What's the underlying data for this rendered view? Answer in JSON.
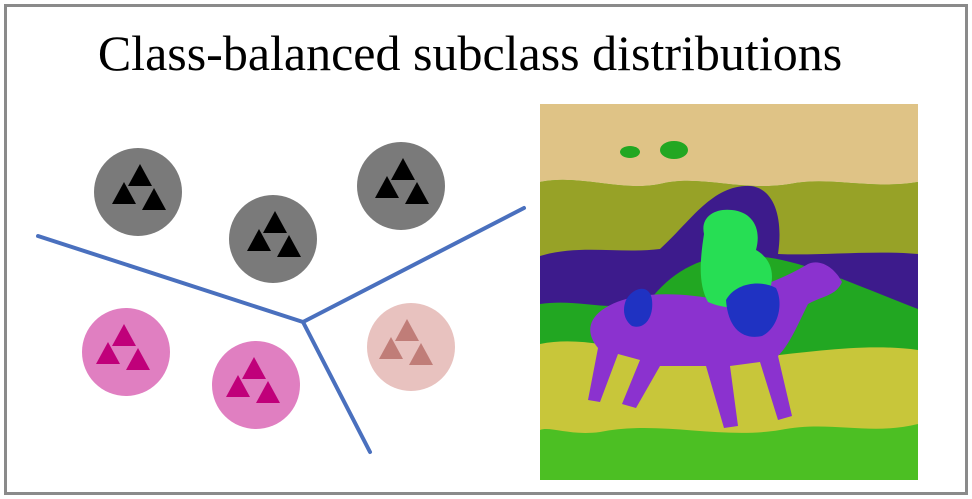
{
  "title": "Class-balanced subclass distributions",
  "colors": {
    "frame": "#8a8a8a",
    "boundary": "#4a70be",
    "cluster_gray_fill": "#7a7a7a",
    "cluster_gray_marker": "#000000",
    "cluster_pink_fill": "#e07fc1",
    "cluster_pink_marker": "#c0007a",
    "cluster_faded_fill": "#e8c2bf",
    "cluster_faded_marker": "#c07d78"
  },
  "clusters": [
    {
      "name": "cluster-gray-1",
      "group": "gray"
    },
    {
      "name": "cluster-gray-2",
      "group": "gray"
    },
    {
      "name": "cluster-gray-3",
      "group": "gray"
    },
    {
      "name": "cluster-pink-1",
      "group": "pink"
    },
    {
      "name": "cluster-pink-2",
      "group": "pink"
    },
    {
      "name": "cluster-faded-1",
      "group": "faded"
    }
  ],
  "segmentation_image": {
    "icon": "horse-rider-segmentation-map",
    "colors": {
      "sky": "#dfc386",
      "hills": "#97a227",
      "treeline": "#3d1b8c",
      "background_green": "#22a722",
      "horse": "#8b32cf",
      "rider": "#27de54",
      "saddle": "#1f32c2",
      "grass": "#c8c63a",
      "ground": "#4cbf23"
    }
  }
}
